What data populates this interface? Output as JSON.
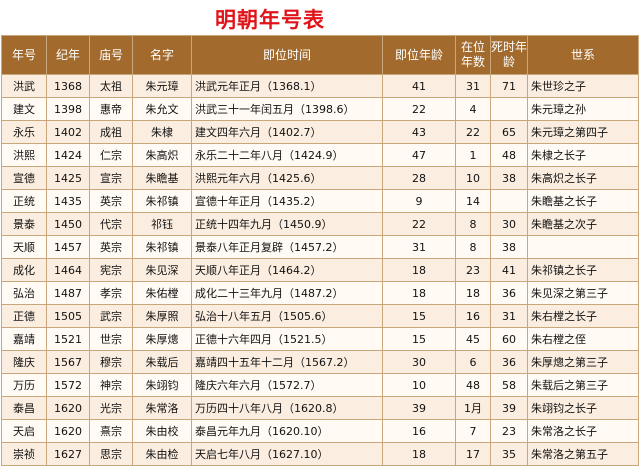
{
  "title": "明朝年号表",
  "headers": [
    "年号",
    "纪年",
    "庙号",
    "名字",
    "即位时间",
    "即位年龄",
    "在位年数",
    "死时年龄",
    "世系"
  ],
  "rows": [
    [
      "洪武",
      "1368",
      "太祖",
      "朱元璋",
      "洪武元年正月（1368.1）",
      "41",
      "31",
      "71",
      "朱世珍之子"
    ],
    [
      "建文",
      "1398",
      "惠帝",
      "朱允文",
      "洪武三十一年闰五月（1398.6）",
      "22",
      "4",
      "",
      "朱元璋之孙"
    ],
    [
      "永乐",
      "1402",
      "成祖",
      "朱棣",
      "建文四年六月（1402.7）",
      "43",
      "22",
      "65",
      "朱元璋之第四子"
    ],
    [
      "洪熙",
      "1424",
      "仁宗",
      "朱高炽",
      "永乐二十二年八月（1424.9）",
      "47",
      "1",
      "48",
      "朱棣之长子"
    ],
    [
      "宣德",
      "1425",
      "宣宗",
      "朱瞻基",
      "洪熙元年六月（1425.6）",
      "28",
      "10",
      "38",
      "朱高炽之长子"
    ],
    [
      "正统",
      "1435",
      "英宗",
      "朱祁镇",
      "宣德十年正月（1435.2）",
      "9",
      "14",
      "",
      "朱瞻基之长子"
    ],
    [
      "景泰",
      "1450",
      "代宗",
      "祁钰",
      "正统十四年九月（1450.9）",
      "22",
      "8",
      "30",
      "朱瞻基之次子"
    ],
    [
      "天顺",
      "1457",
      "英宗",
      "朱祁镇",
      "景泰八年正月复辟（1457.2）",
      "31",
      "8",
      "38",
      ""
    ],
    [
      "成化",
      "1464",
      "宪宗",
      "朱见深",
      "天顺八年正月（1464.2）",
      "18",
      "23",
      "41",
      "朱祁镇之长子"
    ],
    [
      "弘治",
      "1487",
      "孝宗",
      "朱佑樘",
      "成化二十三年九月（1487.2）",
      "18",
      "18",
      "36",
      "朱见深之第三子"
    ],
    [
      "正德",
      "1505",
      "武宗",
      "朱厚照",
      "弘治十八年五月（1505.6）",
      "15",
      "16",
      "31",
      "朱右樘之长子"
    ],
    [
      "嘉靖",
      "1521",
      "世宗",
      "朱厚熜",
      "正德十六年四月（1521.5）",
      "15",
      "45",
      "60",
      "朱右樘之侄"
    ],
    [
      "隆庆",
      "1567",
      "穆宗",
      "朱载后",
      "嘉靖四十五年十二月（1567.2）",
      "30",
      "6",
      "36",
      "朱厚熜之第三子"
    ],
    [
      "万历",
      "1572",
      "神宗",
      "朱翊钧",
      "隆庆六年六月（1572.7）",
      "10",
      "48",
      "58",
      "朱载后之第三子"
    ],
    [
      "泰昌",
      "1620",
      "光宗",
      "朱常洛",
      "万历四十八年八月（1620.8）",
      "39",
      "1月",
      "39",
      "朱翊钧之长子"
    ],
    [
      "天启",
      "1620",
      "熹宗",
      "朱由校",
      "泰昌元年九月（1620.10）",
      "16",
      "7",
      "23",
      "朱常洛之长子"
    ],
    [
      "崇祯",
      "1627",
      "思宗",
      "朱由检",
      "天启七年八月（1627.10）",
      "18",
      "17",
      "35",
      "朱常洛之第五子"
    ]
  ]
}
